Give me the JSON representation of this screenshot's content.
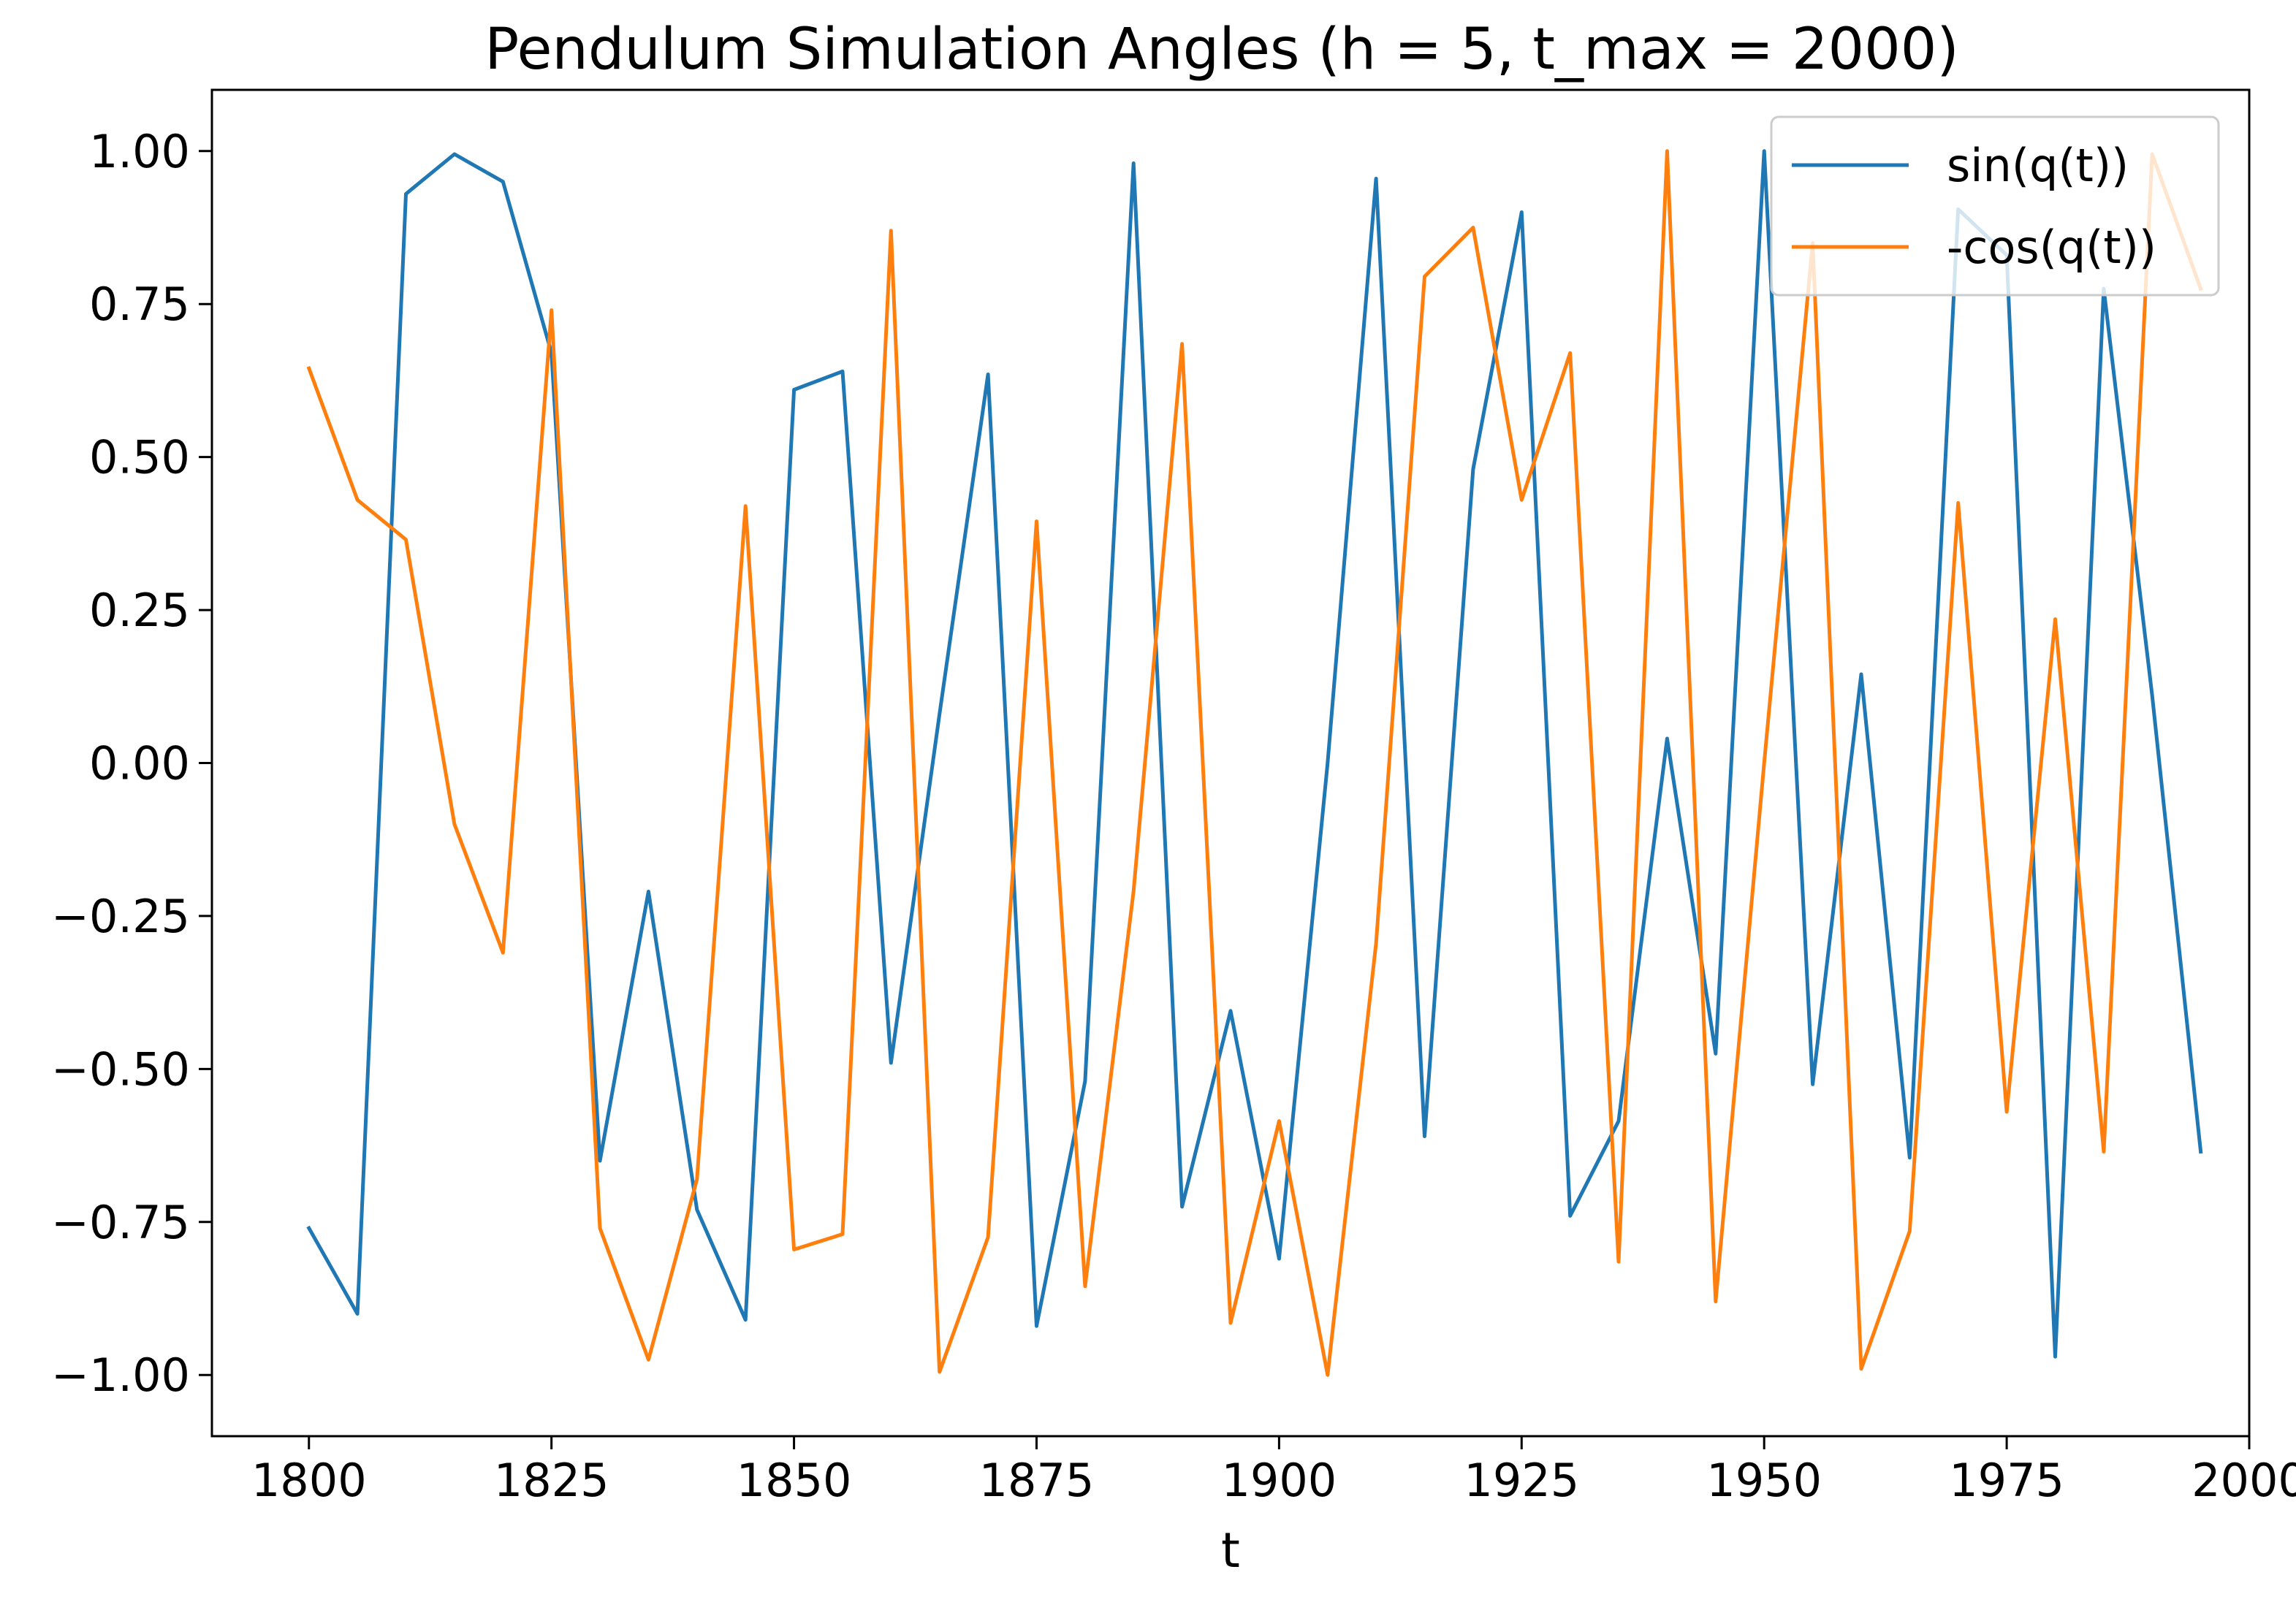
{
  "chart_data": {
    "type": "line",
    "title": "Pendulum Simulation Angles (h = 5, t_max = 2000)",
    "xlabel": "t",
    "ylabel": "",
    "xlim": [
      1790,
      2000
    ],
    "ylim": [
      -1.1,
      1.1
    ],
    "x_ticks": [
      1800,
      1825,
      1850,
      1875,
      1900,
      1925,
      1950,
      1975,
      2000
    ],
    "x_tick_labels": [
      "1800",
      "1825",
      "1850",
      "1875",
      "1900",
      "1925",
      "1950",
      "1975",
      "2000"
    ],
    "y_ticks": [
      1.0,
      0.75,
      0.5,
      0.25,
      0.0,
      -0.25,
      -0.5,
      -0.75,
      -1.0
    ],
    "y_tick_labels": [
      "1.00",
      "0.75",
      "0.50",
      "0.25",
      "0.00",
      "−0.25",
      "−0.50",
      "−0.75",
      "−1.00"
    ],
    "grid": false,
    "legend_position": "top-right",
    "x": [
      1800,
      1805,
      1810,
      1815,
      1820,
      1825,
      1830,
      1835,
      1840,
      1845,
      1850,
      1855,
      1860,
      1865,
      1870,
      1875,
      1880,
      1885,
      1890,
      1895,
      1900,
      1905,
      1910,
      1915,
      1920,
      1925,
      1930,
      1935,
      1940,
      1945,
      1950,
      1955,
      1960,
      1965,
      1970,
      1975,
      1980,
      1985,
      1990,
      1995
    ],
    "series": [
      {
        "name": "sin(q(t))",
        "color": "#1f77b4",
        "values": [
          -0.76,
          -0.9,
          0.93,
          0.995,
          0.95,
          0.67,
          -0.65,
          -0.21,
          -0.73,
          -0.91,
          0.61,
          0.64,
          -0.49,
          0.08,
          0.635,
          -0.92,
          -0.52,
          0.98,
          -0.725,
          -0.405,
          -0.81,
          0.0,
          0.955,
          -0.61,
          0.48,
          0.9,
          -0.74,
          -0.585,
          0.04,
          -0.475,
          1.0,
          -0.525,
          0.145,
          -0.645,
          0.905,
          0.83,
          -0.97,
          0.775,
          0.11,
          -0.635
        ]
      },
      {
        "name": "-cos(q(t))",
        "color": "#ff7f0e",
        "values": [
          0.645,
          0.43,
          0.365,
          -0.1,
          -0.31,
          0.74,
          -0.76,
          -0.975,
          -0.68,
          0.42,
          -0.795,
          -0.77,
          0.87,
          -0.995,
          -0.775,
          0.395,
          -0.855,
          -0.21,
          0.685,
          -0.915,
          -0.585,
          -1.0,
          -0.295,
          0.795,
          0.875,
          0.43,
          0.67,
          -0.815,
          1.0,
          -0.88,
          0.0,
          0.85,
          -0.99,
          -0.765,
          0.425,
          -0.57,
          0.235,
          -0.635,
          0.995,
          0.775
        ]
      }
    ]
  }
}
